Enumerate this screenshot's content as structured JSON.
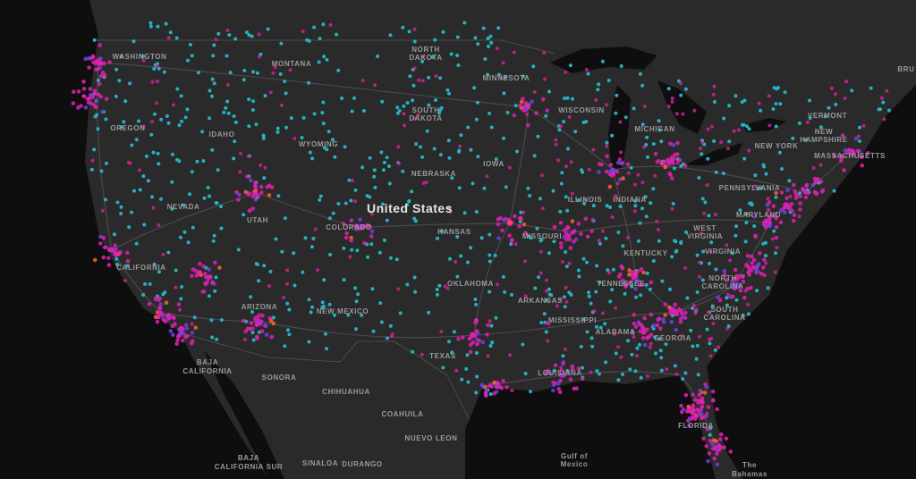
{
  "map": {
    "country_label": "United States",
    "labels": [
      {
        "text": "WASHINGTON"
      },
      {
        "text": "MONTANA"
      },
      {
        "text": "NORTH"
      },
      {
        "text": "DAKOTA"
      },
      {
        "text": "MINNESOTA"
      },
      {
        "text": "SOUTH"
      },
      {
        "text": "DAKOTA"
      },
      {
        "text": "OREGON"
      },
      {
        "text": "IDAHO"
      },
      {
        "text": "WYOMING"
      },
      {
        "text": "WISCONSIN"
      },
      {
        "text": "MICHIGAN"
      },
      {
        "text": "NEW YORK"
      },
      {
        "text": "VERMONT"
      },
      {
        "text": "NEW"
      },
      {
        "text": "HAMPSHIRE"
      },
      {
        "text": "MASSACHUSETTS"
      },
      {
        "text": "NEBRASKA"
      },
      {
        "text": "IOWA"
      },
      {
        "text": "ILLINOIS"
      },
      {
        "text": "INDIANA"
      },
      {
        "text": "PENNSYLVANIA"
      },
      {
        "text": "NEVADA"
      },
      {
        "text": "UTAH"
      },
      {
        "text": "COLORADO"
      },
      {
        "text": "KANSAS"
      },
      {
        "text": "MISSOURI"
      },
      {
        "text": "KENTUCKY"
      },
      {
        "text": "WEST"
      },
      {
        "text": "VIRGINIA"
      },
      {
        "text": "VIRGINIA"
      },
      {
        "text": "MARYLAND"
      },
      {
        "text": "CALIFORNIA"
      },
      {
        "text": "OKLAHOMA"
      },
      {
        "text": "ARKANSAS"
      },
      {
        "text": "TENNESSEE"
      },
      {
        "text": "NORTH"
      },
      {
        "text": "CAROLINA"
      },
      {
        "text": "SOUTH"
      },
      {
        "text": "CAROLINA"
      },
      {
        "text": "ARIZONA"
      },
      {
        "text": "NEW MEXICO"
      },
      {
        "text": "MISSISSIPPI"
      },
      {
        "text": "ALABAMA"
      },
      {
        "text": "GEORGIA"
      },
      {
        "text": "TEXAS"
      },
      {
        "text": "LOUISIANA"
      },
      {
        "text": "FLORIDA"
      },
      {
        "text": "BAJA"
      },
      {
        "text": "CALIFORNIA"
      },
      {
        "text": "SONORA"
      },
      {
        "text": "CHIHUAHUA"
      },
      {
        "text": "COAHUILA"
      },
      {
        "text": "NUEVO LEON"
      },
      {
        "text": "BAJA"
      },
      {
        "text": "CALIFORNIA SUR"
      },
      {
        "text": "SINALOA"
      },
      {
        "text": "DURANGO"
      },
      {
        "text": "Gulf of"
      },
      {
        "text": "Mexico"
      },
      {
        "text": "The"
      },
      {
        "text": "Bahamas"
      },
      {
        "text": "BRU"
      }
    ]
  }
}
